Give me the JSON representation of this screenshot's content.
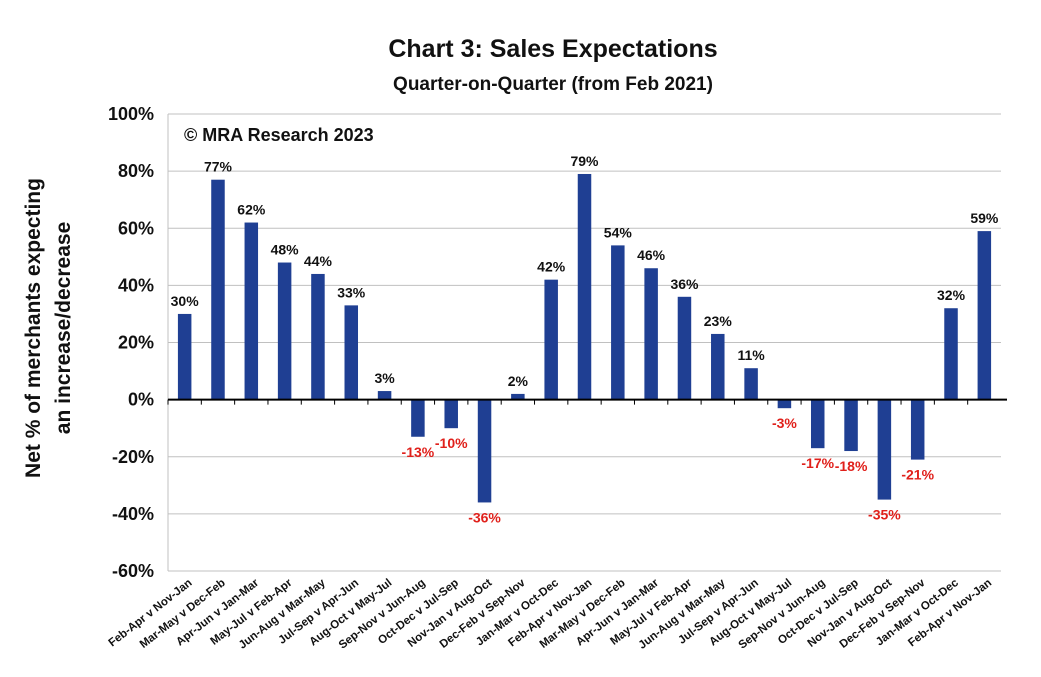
{
  "chart_data": {
    "type": "bar",
    "title": "Chart 3: Sales Expectations",
    "subtitle": "Quarter-on-Quarter (from Feb 2021)",
    "ylabel_line1": "Net % of merchants expecting",
    "ylabel_line2": "an increase/decrease",
    "xlabel": "",
    "annotation": "© MRA Research 2023",
    "ylim": [
      -60,
      100
    ],
    "yticks": [
      -60,
      -40,
      -20,
      0,
      20,
      40,
      60,
      80,
      100
    ],
    "ytick_labels": [
      "-60%",
      "-40%",
      "-20%",
      "0%",
      "20%",
      "40%",
      "60%",
      "80%",
      "100%"
    ],
    "grid": true,
    "categories": [
      "Feb-Apr v Nov-Jan",
      "Mar-May v Dec-Feb",
      "Apr-Jun v Jan-Mar",
      "May-Jul v Feb-Apr",
      "Jun-Aug v Mar-May",
      "Jul-Sep v Apr-Jun",
      "Aug-Oct v May-Jul",
      "Sep-Nov v Jun-Aug",
      "Oct-Dec v Jul-Sep",
      "Nov-Jan v Aug-Oct",
      "Dec-Feb v Sep-Nov",
      "Jan-Mar v Oct-Dec",
      "Feb-Apr v Nov-Jan",
      "Mar-May v Dec-Feb",
      "Apr-Jun v Jan-Mar",
      "May-Jul v Feb-Apr",
      "Jun-Aug v Mar-May",
      "Jul-Sep v Apr-Jun",
      "Aug-Oct v May-Jul",
      "Sep-Nov v Jun-Aug",
      "Oct-Dec v Jul-Sep",
      "Nov-Jan v Aug-Oct",
      "Dec-Feb v Sep-Nov",
      "Jan-Mar v Oct-Dec",
      "Feb-Apr v Nov-Jan"
    ],
    "values": [
      30,
      77,
      62,
      48,
      44,
      33,
      3,
      -13,
      -10,
      -36,
      2,
      42,
      79,
      54,
      46,
      36,
      23,
      11,
      -3,
      -17,
      -18,
      -35,
      -21,
      32,
      59
    ],
    "data_labels": [
      "30%",
      "77%",
      "62%",
      "48%",
      "44%",
      "33%",
      "3%",
      "-13%",
      "-10%",
      "-36%",
      "2%",
      "42%",
      "79%",
      "54%",
      "46%",
      "36%",
      "23%",
      "11%",
      "-3%",
      "-17%",
      "-18%",
      "-35%",
      "-21%",
      "32%",
      "59%"
    ],
    "colors": {
      "bar": "#1f3f93",
      "positive_label": "#111111",
      "negative_label": "#e0201b",
      "grid": "#c0c0c0",
      "axis": "#000000"
    }
  }
}
